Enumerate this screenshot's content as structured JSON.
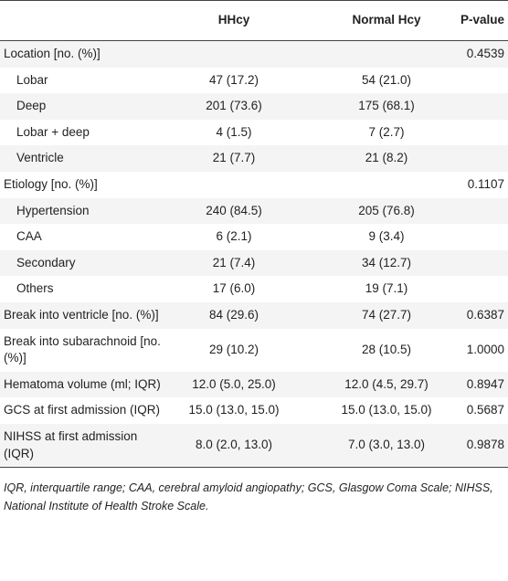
{
  "table": {
    "header": [
      "HHcy",
      "Normal Hcy",
      "P-value"
    ],
    "rows": [
      {
        "label": "Location [no. (%)]",
        "p": "0.4539",
        "items": [
          [
            "Lobar",
            "47 (17.2)",
            "54 (21.0)"
          ],
          [
            "Deep",
            "201 (73.6)",
            "175 (68.1)"
          ],
          [
            "Lobar + deep",
            "4 (1.5)",
            "7 (2.7)"
          ],
          [
            "Ventricle",
            "21 (7.7)",
            "21 (8.2)"
          ]
        ]
      },
      {
        "label": "Etiology [no. (%)]",
        "p": "0.1107",
        "items": [
          [
            "Hypertension",
            "240 (84.5)",
            "205 (76.8)"
          ],
          [
            "CAA",
            "6 (2.1)",
            "9 (3.4)"
          ],
          [
            "Secondary",
            "21 (7.4)",
            "34 (12.7)"
          ],
          [
            "Others",
            "17 (6.0)",
            "19 (7.1)"
          ]
        ]
      },
      {
        "label": "Break into ventricle [no. (%)]",
        "hhcy": "84 (29.6)",
        "normal": "74 (27.7)",
        "p": "0.6387"
      },
      {
        "label": "Break into subarachnoid [no. (%)]",
        "hhcy": "29 (10.2)",
        "normal": "28 (10.5)",
        "p": "1.0000"
      },
      {
        "label": "Hematoma volume (ml; IQR)",
        "hhcy": "12.0 (5.0, 25.0)",
        "normal": "12.0 (4.5, 29.7)",
        "p": "0.8947"
      },
      {
        "label": "GCS at first admission (IQR)",
        "hhcy": "15.0 (13.0, 15.0)",
        "normal": "15.0 (13.0, 15.0)",
        "p": "0.5687"
      },
      {
        "label": "NIHSS at first admission (IQR)",
        "hhcy": "8.0 (2.0, 13.0)",
        "normal": "7.0 (3.0, 13.0)",
        "p": "0.9878"
      }
    ],
    "footnote": "IQR, interquartile range; CAA, cerebral amyloid angiopathy; GCS, Glasgow Coma Scale; NIHSS, National Institute of Health Stroke Scale."
  }
}
